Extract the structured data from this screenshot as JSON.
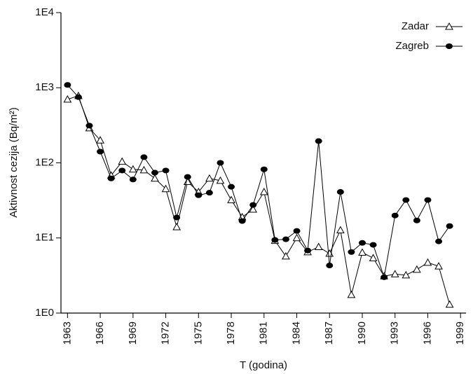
{
  "chart_data": {
    "type": "line",
    "x_label": "T (godina)",
    "y_label": "Aktivnost cezija (Bq/m²)",
    "log_y": true,
    "legend": "upper right",
    "x": [
      1963,
      1964,
      1965,
      1966,
      1967,
      1968,
      1969,
      1970,
      1971,
      1972,
      1973,
      1974,
      1975,
      1976,
      1977,
      1978,
      1979,
      1980,
      1981,
      1982,
      1983,
      1984,
      1985,
      1986,
      1987,
      1988,
      1989,
      1990,
      1991,
      1992,
      1993,
      1994,
      1995,
      1996,
      1997,
      1998
    ],
    "series": [
      {
        "name": "Zadar",
        "color": "#000000",
        "marker": "triangle",
        "values": [
          700,
          780,
          290,
          200,
          68,
          104,
          82,
          80,
          62,
          45,
          14,
          56,
          41,
          62,
          58,
          32,
          19,
          24,
          41,
          9.2,
          5.7,
          10,
          6.5,
          7.6,
          6.2,
          12.7,
          1.75,
          6.4,
          5.4,
          3.1,
          3.3,
          3.2,
          3.8,
          4.7,
          4.2,
          1.3
        ]
      },
      {
        "name": "Zagreb",
        "color": "#000000",
        "marker": "circle",
        "values": [
          1090,
          750,
          313,
          141,
          62,
          79,
          60,
          119,
          74,
          79,
          18.7,
          65,
          37,
          40,
          100,
          48,
          16.8,
          27.5,
          82,
          9.4,
          9.6,
          12.4,
          6.8,
          195,
          4.3,
          41,
          6.5,
          8.6,
          8.1,
          3.0,
          19.9,
          32,
          17.1,
          32,
          9.0,
          14.4
        ]
      }
    ],
    "xlim": [
      1962.4,
      1999.5
    ],
    "xticks": [
      1963,
      1966,
      1969,
      1972,
      1975,
      1978,
      1981,
      1984,
      1987,
      1990,
      1993,
      1996,
      1999
    ],
    "ylim": [
      1,
      10000
    ],
    "yticks": [
      {
        "value": 1,
        "label": "1E0"
      },
      {
        "value": 10,
        "label": "1E1"
      },
      {
        "value": 100,
        "label": "1E2"
      },
      {
        "value": 1000,
        "label": "1E3"
      },
      {
        "value": 10000,
        "label": "1E4"
      }
    ]
  }
}
